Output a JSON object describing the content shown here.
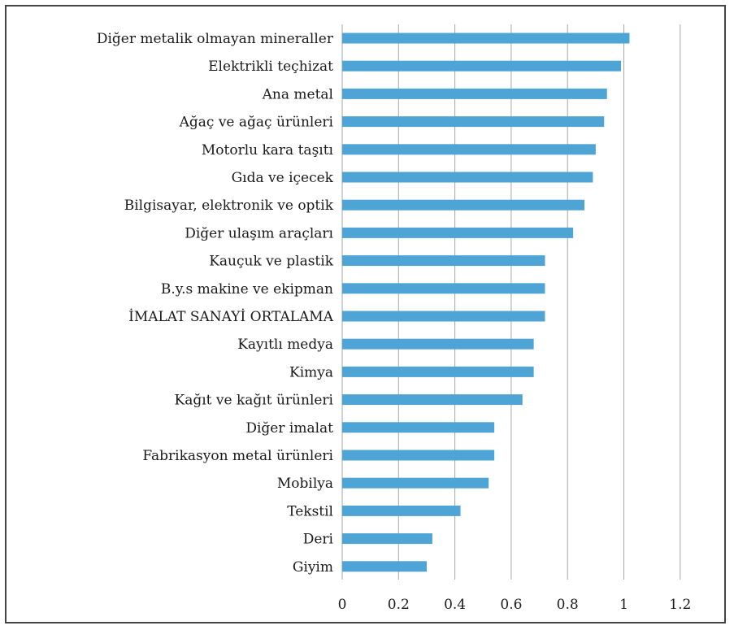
{
  "chart_data": {
    "type": "bar",
    "orientation": "horizontal",
    "categories": [
      "Diğer metalik olmayan mineraller",
      "Elektrikli teçhizat",
      "Ana metal",
      "Ağaç ve ağaç ürünleri",
      "Motorlu kara taşıtı",
      "Gıda ve içecek",
      "Bilgisayar, elektronik ve optik",
      "Diğer ulaşım araçları",
      "Kauçuk ve plastik",
      "B.y.s makine ve ekipman",
      "İMALAT SANAYİ ORTALAMA",
      "Kayıtlı medya",
      "Kimya",
      "Kağıt ve kağıt ürünleri",
      "Diğer imalat",
      "Fabrikasyon metal ürünleri",
      "Mobilya",
      "Tekstil",
      "Deri",
      "Giyim"
    ],
    "values": [
      1.02,
      0.99,
      0.94,
      0.93,
      0.9,
      0.89,
      0.86,
      0.82,
      0.72,
      0.72,
      0.72,
      0.68,
      0.68,
      0.64,
      0.54,
      0.54,
      0.52,
      0.42,
      0.32,
      0.3
    ],
    "xlim": [
      0,
      1.2
    ],
    "xticks": [
      "0",
      "0.2",
      "0.4",
      "0.6",
      "0.8",
      "1",
      "1.2"
    ],
    "title": "",
    "xlabel": "",
    "ylabel": "",
    "grid": "vertical",
    "legend": "none",
    "bar_color": "#4ea5d5",
    "grid_color": "#a6a6a6"
  }
}
